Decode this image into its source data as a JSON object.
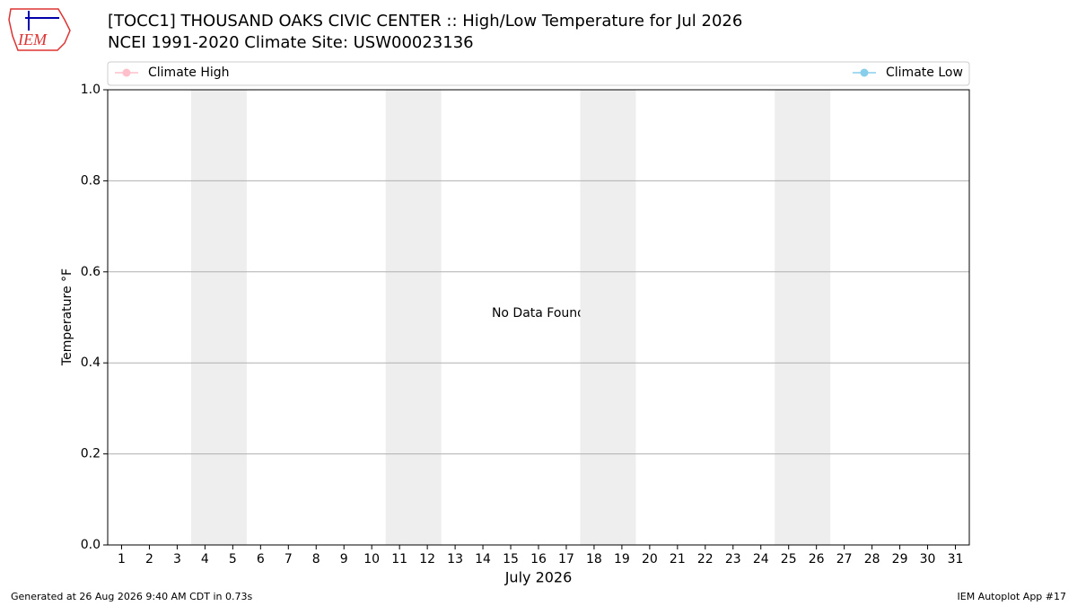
{
  "chart_data": {
    "type": "line",
    "title": "[TOCC1] THOUSAND OAKS CIVIC CENTER :: High/Low Temperature for Jul 2026",
    "subtitle": "NCEI 1991-2020 Climate Site: USW00023136",
    "x_label": "July 2026",
    "y_label": "Temperature °F",
    "annotation": "No Data Found",
    "x": [],
    "series": [
      {
        "name": "Climate High",
        "color": "#ffc0cb",
        "values": []
      },
      {
        "name": "Climate Low",
        "color": "#87ceeb",
        "values": []
      }
    ],
    "xlim": [
      0.5,
      31.5
    ],
    "xticks": [
      1,
      2,
      3,
      4,
      5,
      6,
      7,
      8,
      9,
      10,
      11,
      12,
      13,
      14,
      15,
      16,
      17,
      18,
      19,
      20,
      21,
      22,
      23,
      24,
      25,
      26,
      27,
      28,
      29,
      30,
      31
    ],
    "ylim": [
      0,
      1
    ],
    "yticks": [
      {
        "value": 0,
        "label": "0.0"
      },
      0.2,
      0.4,
      0.6,
      0.8,
      {
        "value": 1,
        "label": "1.0"
      }
    ],
    "shaded_spans": [
      [
        3.5,
        5.5
      ],
      [
        10.5,
        12.5
      ],
      [
        17.5,
        19.5
      ],
      [
        24.5,
        26.5
      ]
    ],
    "grid": true,
    "legend": "top"
  },
  "logo_text": "IEM",
  "footer_left": "Generated at 26 Aug 2026 9:40 AM CDT in 0.73s",
  "footer_right": "IEM Autoplot App #17"
}
